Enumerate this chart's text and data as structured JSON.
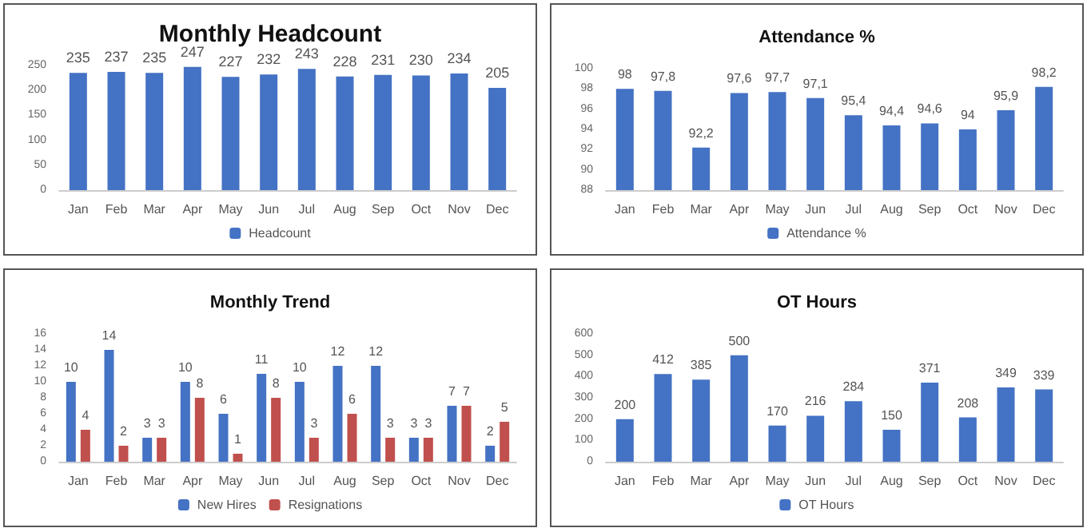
{
  "chart_data": [
    {
      "type": "bar",
      "title": "Monthly Headcount",
      "categories": [
        "Jan",
        "Feb",
        "Mar",
        "Apr",
        "May",
        "Jun",
        "Jul",
        "Aug",
        "Sep",
        "Oct",
        "Nov",
        "Dec"
      ],
      "series": [
        {
          "name": "Headcount",
          "color": "#4472c4",
          "values": [
            235,
            237,
            235,
            247,
            227,
            232,
            243,
            228,
            231,
            230,
            234,
            205
          ]
        }
      ],
      "ylim": [
        0,
        250
      ],
      "yticks": [
        0,
        50,
        100,
        150,
        200,
        250
      ],
      "data_labels": true,
      "legend": "bottom"
    },
    {
      "type": "bar",
      "title": "Attendance %",
      "categories": [
        "Jan",
        "Feb",
        "Mar",
        "Apr",
        "May",
        "Jun",
        "Jul",
        "Aug",
        "Sep",
        "Oct",
        "Nov",
        "Dec"
      ],
      "series": [
        {
          "name": "Attendance %",
          "color": "#4472c4",
          "values": [
            98,
            97.8,
            92.2,
            97.6,
            97.7,
            97.1,
            95.4,
            94.4,
            94.6,
            94,
            95.9,
            98.2
          ],
          "value_labels": [
            "98",
            "97,8",
            "92,2",
            "97,6",
            "97,7",
            "97,1",
            "95,4",
            "94,4",
            "94,6",
            "94",
            "95,9",
            "98,2"
          ]
        }
      ],
      "ylim": [
        88,
        100
      ],
      "yticks": [
        88,
        90,
        92,
        94,
        96,
        98,
        100
      ],
      "legend": "bottom"
    },
    {
      "type": "bar",
      "title": "Monthly Trend",
      "categories": [
        "Jan",
        "Feb",
        "Mar",
        "Apr",
        "May",
        "Jun",
        "Jul",
        "Aug",
        "Sep",
        "Oct",
        "Nov",
        "Dec"
      ],
      "series": [
        {
          "name": "New Hires",
          "color": "#4472c4",
          "values": [
            10,
            14,
            3,
            10,
            6,
            11,
            10,
            12,
            12,
            3,
            7,
            2
          ]
        },
        {
          "name": "Resignations",
          "color": "#c0504d",
          "values": [
            4,
            2,
            3,
            8,
            1,
            8,
            3,
            6,
            3,
            3,
            7,
            5
          ]
        }
      ],
      "ylim": [
        0,
        16
      ],
      "yticks": [
        0,
        2,
        4,
        6,
        8,
        10,
        12,
        14,
        16
      ],
      "data_labels": true,
      "legend": "bottom"
    },
    {
      "type": "bar",
      "title": "OT Hours",
      "categories": [
        "Jan",
        "Feb",
        "Mar",
        "Apr",
        "May",
        "Jun",
        "Jul",
        "Aug",
        "Sep",
        "Oct",
        "Nov",
        "Dec"
      ],
      "series": [
        {
          "name": "OT Hours",
          "color": "#4472c4",
          "values": [
            200,
            412,
            385,
            500,
            170,
            216,
            284,
            150,
            371,
            208,
            349,
            339
          ]
        }
      ],
      "ylim": [
        0,
        600
      ],
      "yticks": [
        0,
        100,
        200,
        300,
        400,
        500,
        600
      ],
      "data_labels": true,
      "legend": "bottom"
    }
  ]
}
